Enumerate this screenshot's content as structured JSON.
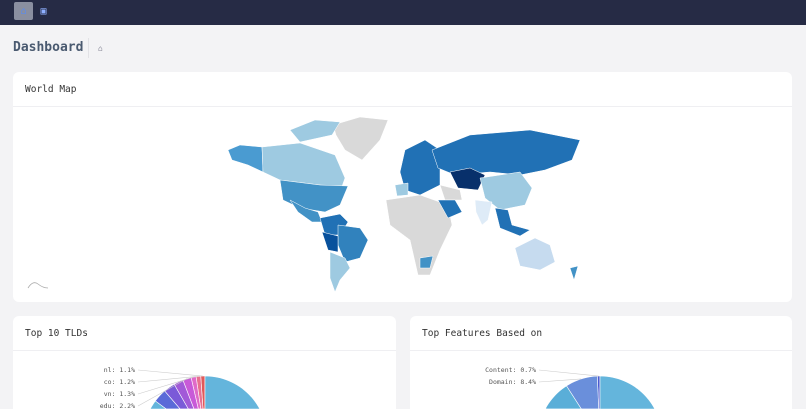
{
  "topbar": {
    "items": [
      {
        "icon": "home-icon",
        "active": true
      },
      {
        "icon": "chart-icon",
        "active": false
      }
    ]
  },
  "page": {
    "title": "Dashboard",
    "breadcrumb_icon": "home-icon"
  },
  "world_map": {
    "title": "World Map",
    "colors": {
      "none": "#d9d9d9",
      "lightest": "#deebf7",
      "light": "#9ecae1",
      "mid": "#4292c6",
      "dark": "#2171b5",
      "darkest": "#08306b"
    }
  },
  "tlds": {
    "title": "Top 10 TLDs",
    "labels": [
      {
        "name": "nl",
        "text": "nl: 1.1%",
        "value": 1.1
      },
      {
        "name": "co",
        "text": "co: 1.2%",
        "value": 1.2
      },
      {
        "name": "vn",
        "text": "vn: 1.3%",
        "value": 1.3
      },
      {
        "name": "edu",
        "text": "edu: 2.2%",
        "value": 2.2
      }
    ]
  },
  "features": {
    "title": "Top Features Based on",
    "labels": [
      {
        "name": "Content",
        "text": "Content: 0.7%",
        "value": 0.7
      },
      {
        "name": "Domain",
        "text": "Domain: 8.4%",
        "value": 8.4
      }
    ]
  }
}
